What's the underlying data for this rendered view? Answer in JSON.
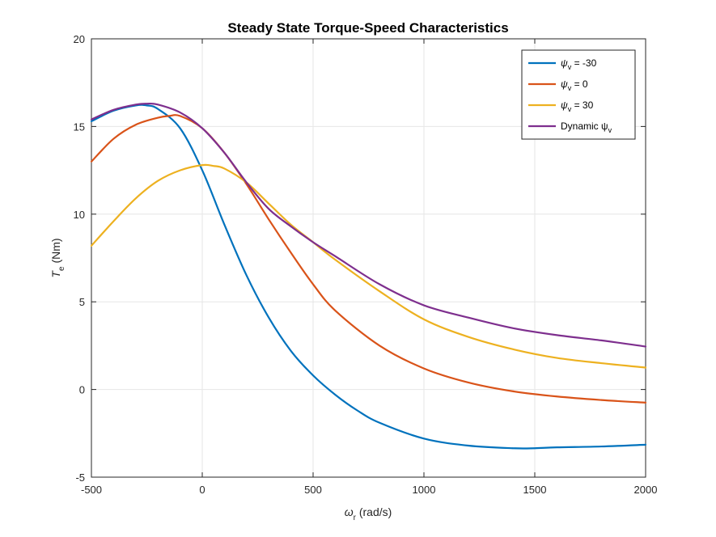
{
  "chart_data": {
    "type": "line",
    "title": "Steady State Torque-Speed Characteristics",
    "xlabel": {
      "symbol": "ω",
      "sub": "r",
      "text": " (rad/s)"
    },
    "ylabel": {
      "symbol": "T",
      "sub": "e",
      "text": " (Nm)"
    },
    "xlim": [
      -500,
      2000
    ],
    "ylim": [
      -5,
      20
    ],
    "xticks": [
      -500,
      0,
      500,
      1000,
      1500,
      2000
    ],
    "yticks": [
      -5,
      0,
      5,
      10,
      15,
      20
    ],
    "grid": true,
    "legend_position": "top-right",
    "series": [
      {
        "name": "ψv = -30",
        "legend": {
          "symbol": "ψ",
          "sub": "v",
          "text": " = -30"
        },
        "color": "#0072BD",
        "x": [
          -500,
          -400,
          -300,
          -250,
          -200,
          -100,
          0,
          100,
          200,
          300,
          400,
          500,
          600,
          700,
          800,
          1000,
          1200,
          1400,
          1500,
          1600,
          1800,
          2000
        ],
        "y": [
          15.3,
          15.9,
          16.2,
          16.2,
          16.0,
          14.9,
          12.5,
          9.4,
          6.5,
          4.1,
          2.2,
          0.8,
          -0.3,
          -1.2,
          -1.9,
          -2.8,
          -3.2,
          -3.35,
          -3.35,
          -3.3,
          -3.25,
          -3.15
        ]
      },
      {
        "name": "ψv = 0",
        "legend": {
          "symbol": "ψ",
          "sub": "v",
          "text": " = 0"
        },
        "color": "#D95319",
        "x": [
          -500,
          -400,
          -300,
          -200,
          -150,
          -100,
          0,
          100,
          200,
          300,
          400,
          500,
          600,
          800,
          1000,
          1200,
          1400,
          1600,
          1800,
          2000
        ],
        "y": [
          13.0,
          14.3,
          15.1,
          15.5,
          15.6,
          15.6,
          14.9,
          13.5,
          11.7,
          9.7,
          7.8,
          6.0,
          4.5,
          2.5,
          1.2,
          0.4,
          -0.1,
          -0.4,
          -0.6,
          -0.75
        ]
      },
      {
        "name": "ψv = 30",
        "legend": {
          "symbol": "ψ",
          "sub": "v",
          "text": " = 30"
        },
        "color": "#EDB120",
        "x": [
          -500,
          -400,
          -300,
          -200,
          -100,
          0,
          50,
          100,
          200,
          300,
          400,
          500,
          600,
          800,
          1000,
          1200,
          1400,
          1600,
          1800,
          2000
        ],
        "y": [
          8.2,
          9.6,
          10.9,
          11.9,
          12.5,
          12.8,
          12.75,
          12.6,
          11.8,
          10.6,
          9.4,
          8.4,
          7.4,
          5.6,
          4.0,
          3.0,
          2.3,
          1.8,
          1.5,
          1.25
        ]
      },
      {
        "name": "Dynamic ψv",
        "legend": {
          "symbol": "",
          "sub": "v",
          "text": "Dynamic ψ"
        },
        "color": "#7E2F8E",
        "x": [
          -500,
          -400,
          -300,
          -250,
          -200,
          -100,
          0,
          100,
          200,
          300,
          400,
          500,
          600,
          800,
          1000,
          1200,
          1400,
          1600,
          1800,
          2000
        ],
        "y": [
          15.4,
          15.95,
          16.25,
          16.3,
          16.25,
          15.8,
          14.9,
          13.5,
          11.8,
          10.3,
          9.3,
          8.4,
          7.6,
          6.0,
          4.8,
          4.1,
          3.5,
          3.1,
          2.8,
          2.45
        ]
      }
    ]
  }
}
